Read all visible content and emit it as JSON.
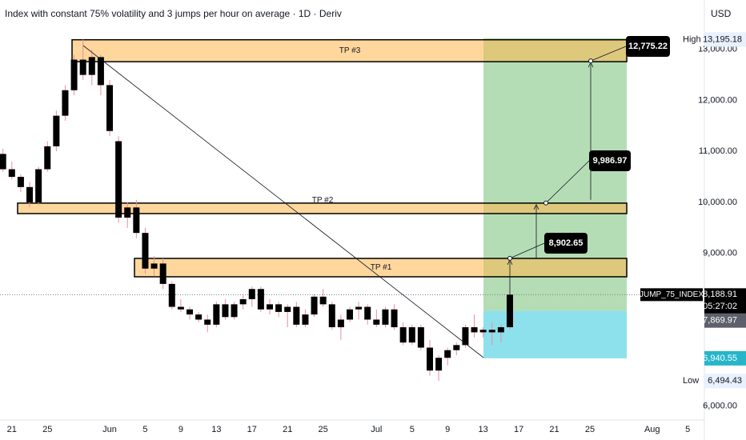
{
  "title": "Index with constant 75% volatility and 3 jumps per hour on average · 1D · Deriv",
  "currency": "USD",
  "chart_data": {
    "type": "candlestick",
    "categories": [
      null,
      "21",
      null,
      null,
      null,
      "25",
      null,
      null,
      null,
      null,
      null,
      null,
      "Jun",
      null,
      null,
      null,
      "5",
      null,
      null,
      null,
      "9",
      null,
      null,
      null,
      "13",
      null,
      null,
      null,
      "17",
      null,
      null,
      null,
      "21",
      null,
      null,
      null,
      "25",
      null,
      null,
      null,
      null,
      null,
      "Jul",
      null,
      null,
      null,
      "5",
      null,
      null,
      null,
      "9",
      null,
      null,
      null,
      "13",
      null,
      null,
      null,
      "17",
      null,
      null,
      null,
      "21",
      null,
      null,
      null,
      "25",
      null,
      null,
      null,
      null,
      null,
      null,
      "Aug",
      null,
      null,
      null,
      "5"
    ],
    "open": [
      10950,
      10650,
      10500,
      10300,
      10000,
      10650,
      11100,
      11700,
      12200,
      12800,
      12500,
      12850,
      12300,
      11200,
      9700,
      9900,
      9400,
      8700,
      8800,
      8400,
      7950,
      7900,
      7800,
      7700,
      7600,
      8000,
      7750,
      8000,
      8100,
      8300,
      7900,
      8000,
      7850,
      7950,
      7600,
      7800,
      8150,
      8000,
      7550,
      7700,
      7900,
      7950,
      7700,
      7600,
      7900,
      7550,
      7250,
      7550,
      7150,
      6700,
      6950,
      7100,
      7200,
      7550,
      7450,
      7500,
      7450,
      7550,
      null,
      null,
      null,
      null,
      null,
      null,
      null,
      null,
      null,
      null,
      null,
      null,
      null,
      null,
      null,
      null,
      null,
      null,
      null,
      null
    ],
    "high": [
      11050,
      10800,
      10550,
      10400,
      10700,
      11200,
      11800,
      12300,
      12900,
      13195.18,
      13000,
      12900,
      12400,
      11300,
      10000,
      10050,
      9500,
      8950,
      8900,
      8450,
      8100,
      7950,
      7850,
      7800,
      8050,
      8100,
      8050,
      8200,
      8350,
      8350,
      8100,
      8050,
      8000,
      8050,
      7900,
      8200,
      8300,
      8050,
      7800,
      7950,
      8050,
      8000,
      7900,
      7950,
      8000,
      7650,
      7600,
      7600,
      7300,
      7000,
      7150,
      7250,
      7600,
      7800,
      7550,
      7650,
      7600,
      8450,
      null,
      null,
      null,
      null,
      null,
      null,
      null,
      null,
      null,
      null,
      null,
      null,
      null,
      null,
      null,
      null,
      null,
      null,
      null,
      null
    ],
    "low": [
      10600,
      10450,
      10200,
      9900,
      9950,
      10600,
      11000,
      11600,
      12100,
      12400,
      12300,
      12100,
      11300,
      9600,
      9500,
      9300,
      8600,
      8550,
      8300,
      7900,
      7850,
      7700,
      7650,
      7450,
      7550,
      7700,
      7700,
      7900,
      7950,
      7850,
      7800,
      7750,
      7550,
      7550,
      7550,
      7750,
      7950,
      7500,
      7300,
      7650,
      7700,
      7600,
      7550,
      7550,
      7500,
      7200,
      7200,
      7100,
      6600,
      6494.43,
      6800,
      7000,
      7150,
      7350,
      7350,
      7200,
      7250,
      7500,
      null,
      null,
      null,
      null,
      null,
      null,
      null,
      null,
      null,
      null,
      null,
      null,
      null,
      null,
      null,
      null,
      null,
      null,
      null,
      null
    ],
    "close": [
      10650,
      10500,
      10300,
      10000,
      10650,
      11100,
      11700,
      12200,
      12800,
      12500,
      12850,
      12300,
      11400,
      9700,
      9900,
      9400,
      8700,
      8800,
      8400,
      7950,
      7900,
      7800,
      7700,
      7600,
      8000,
      7750,
      8000,
      8100,
      8300,
      7900,
      8000,
      7850,
      7950,
      7600,
      7800,
      8150,
      8000,
      7550,
      7700,
      7900,
      7950,
      7700,
      7600,
      7900,
      7550,
      7250,
      7550,
      7150,
      6700,
      6950,
      7100,
      7200,
      7550,
      7450,
      7500,
      7450,
      7550,
      8188.91,
      null,
      null,
      null,
      null,
      null,
      null,
      null,
      null,
      null,
      null,
      null,
      null,
      null,
      null,
      null,
      null,
      null,
      null,
      null,
      null
    ],
    "color": "#000000",
    "wick_color": "#f08a9b",
    "ylim": [
      5730,
      13970
    ],
    "yticks": [
      {
        "value": 6000,
        "label": "6,000.00"
      },
      {
        "value": 9000,
        "label": "9,000.00"
      },
      {
        "value": 10000,
        "label": "10,000.00"
      },
      {
        "value": 11000,
        "label": "11,000.00"
      },
      {
        "value": 12000,
        "label": "12,000.00"
      },
      {
        "value": 13000,
        "label": "13,000.00"
      }
    ],
    "zones": [
      {
        "label": "TP #3",
        "top": 13190,
        "bottom": 12760
      },
      {
        "label": "TP #2",
        "top": 9985,
        "bottom": 9780
      },
      {
        "label": "TP #1",
        "top": 8900,
        "bottom": 8540
      }
    ],
    "position": {
      "target": 13220,
      "entry": 7869.97,
      "entry_label": "7,869.97",
      "stop": 6940.55,
      "stop_label": "6,940.55"
    },
    "callouts": [
      {
        "value": 8902.65,
        "label": "8,902.65"
      },
      {
        "value": 9986.97,
        "label": "9,986.97"
      },
      {
        "value": 12775.22,
        "label": "12,775.22"
      }
    ],
    "last": {
      "name": "JUMP_75_INDEX",
      "value": 8188.91,
      "value_label": "8,188.91",
      "countdown": "05:27:02"
    },
    "extremes": [
      {
        "name": "High",
        "value": 13195.18,
        "value_label": "13,195.18"
      },
      {
        "name": "Low",
        "value": 6494.43,
        "value_label": "6,494.43"
      }
    ]
  }
}
